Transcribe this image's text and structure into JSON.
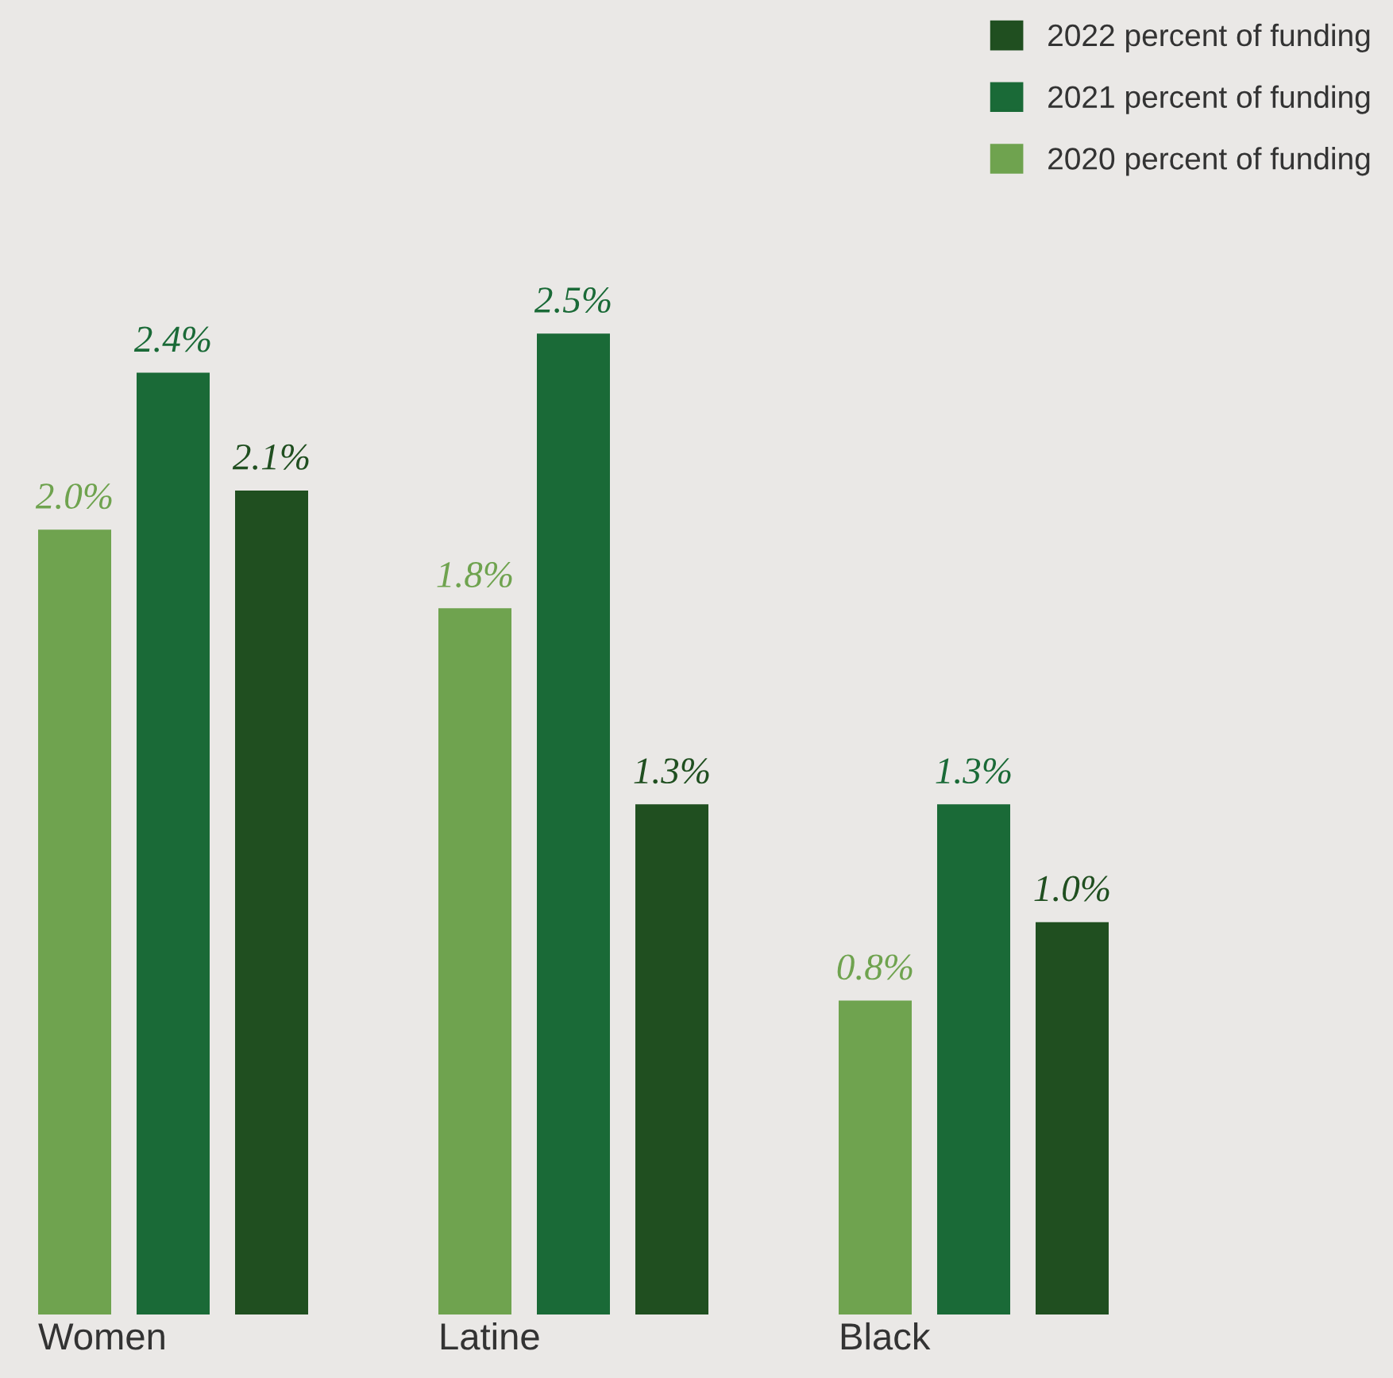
{
  "chart_data": {
    "type": "bar",
    "categories": [
      "Women",
      "Latine",
      "Black"
    ],
    "series": [
      {
        "name": "2020 percent of funding",
        "color": "#6fa34f",
        "values": [
          2.0,
          1.8,
          0.8
        ],
        "value_labels": [
          "2.0%",
          "1.8%",
          "0.8%"
        ]
      },
      {
        "name": "2021 percent of funding",
        "color": "#1a6a37",
        "values": [
          2.4,
          2.5,
          1.3
        ],
        "value_labels": [
          "2.4%",
          "2.5%",
          "1.3%"
        ]
      },
      {
        "name": "2022 percent of funding",
        "color": "#204f20",
        "values": [
          2.1,
          1.3,
          1.0
        ],
        "value_labels": [
          "2.1%",
          "1.3%",
          "1.0%"
        ]
      }
    ],
    "ylim": [
      0,
      3.35
    ],
    "legend": "top right"
  }
}
